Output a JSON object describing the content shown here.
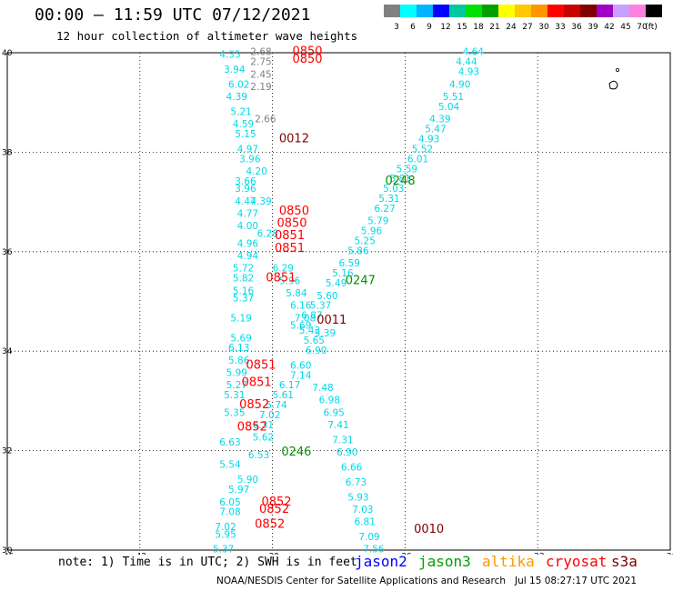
{
  "header": {
    "title": "00:00 — 11:59 UTC 07/12/2021",
    "subtitle": "12 hour collection of altimeter wave heights"
  },
  "colorbar": {
    "colors": [
      "#808080",
      "#00ffff",
      "#00b4ff",
      "#0000ff",
      "#00c8a0",
      "#00e000",
      "#00a000",
      "#ffff00",
      "#ffc800",
      "#ff9600",
      "#ff0000",
      "#c80000",
      "#800000",
      "#a000c8",
      "#c8a0ff",
      "#ff80e0",
      "#000000"
    ],
    "labels": [
      "3",
      "6",
      "9",
      "12",
      "15",
      "18",
      "21",
      "24",
      "27",
      "30",
      "33",
      "36",
      "39",
      "42",
      "45",
      "70",
      "(ft)"
    ]
  },
  "map": {
    "lon_ticks": [
      "-45",
      "-42",
      "-39",
      "-36",
      "-33",
      "-30"
    ],
    "lat_ticks": [
      "40",
      "38",
      "36",
      "34",
      "32",
      "30"
    ]
  },
  "chart_data": {
    "type": "scatter",
    "xlim": [
      -45,
      -30
    ],
    "ylim": [
      30,
      40
    ],
    "grid": true,
    "swh_labels": [
      {
        "lon": -40.2,
        "lat": 39.9,
        "v": "4.35",
        "c": "cyan"
      },
      {
        "lon": -40.1,
        "lat": 39.6,
        "v": "3.94",
        "c": "cyan"
      },
      {
        "lon": -40.0,
        "lat": 39.3,
        "v": "6.02",
        "c": "cyan"
      },
      {
        "lon": -40.05,
        "lat": 39.05,
        "v": "4.39",
        "c": "cyan"
      },
      {
        "lon": -39.95,
        "lat": 38.75,
        "v": "5.21",
        "c": "cyan"
      },
      {
        "lon": -39.9,
        "lat": 38.5,
        "v": "4.59",
        "c": "cyan"
      },
      {
        "lon": -39.85,
        "lat": 38.3,
        "v": "5.15",
        "c": "cyan"
      },
      {
        "lon": -39.8,
        "lat": 38.0,
        "v": "4.97",
        "c": "cyan"
      },
      {
        "lon": -39.75,
        "lat": 37.8,
        "v": "3.96",
        "c": "cyan"
      },
      {
        "lon": -39.6,
        "lat": 37.55,
        "v": "4.20",
        "c": "cyan"
      },
      {
        "lon": -39.85,
        "lat": 37.35,
        "v": "3.66",
        "c": "cyan"
      },
      {
        "lon": -39.85,
        "lat": 37.2,
        "v": "3.96",
        "c": "cyan"
      },
      {
        "lon": -39.85,
        "lat": 36.95,
        "v": "4.47",
        "c": "cyan"
      },
      {
        "lon": -39.5,
        "lat": 36.95,
        "v": "4.39",
        "c": "cyan"
      },
      {
        "lon": -39.8,
        "lat": 36.7,
        "v": "4.77",
        "c": "cyan"
      },
      {
        "lon": -39.8,
        "lat": 36.45,
        "v": "4.00",
        "c": "cyan"
      },
      {
        "lon": -39.8,
        "lat": 36.1,
        "v": "4.96",
        "c": "cyan"
      },
      {
        "lon": -39.8,
        "lat": 35.85,
        "v": "4.94",
        "c": "cyan"
      },
      {
        "lon": -39.9,
        "lat": 35.6,
        "v": "5.72",
        "c": "cyan"
      },
      {
        "lon": -39.9,
        "lat": 35.4,
        "v": "5.82",
        "c": "cyan"
      },
      {
        "lon": -39.9,
        "lat": 35.15,
        "v": "5.16",
        "c": "cyan"
      },
      {
        "lon": -39.9,
        "lat": 35.0,
        "v": "5.37",
        "c": "cyan"
      },
      {
        "lon": -39.95,
        "lat": 34.6,
        "v": "5.19",
        "c": "cyan"
      },
      {
        "lon": -39.95,
        "lat": 34.2,
        "v": "5.69",
        "c": "cyan"
      },
      {
        "lon": -40.0,
        "lat": 34.0,
        "v": "6.13",
        "c": "cyan"
      },
      {
        "lon": -40.0,
        "lat": 33.75,
        "v": "5.86",
        "c": "cyan"
      },
      {
        "lon": -40.05,
        "lat": 33.5,
        "v": "5.99",
        "c": "cyan"
      },
      {
        "lon": -40.05,
        "lat": 33.25,
        "v": "5.27",
        "c": "cyan"
      },
      {
        "lon": -40.1,
        "lat": 33.05,
        "v": "5.31",
        "c": "cyan"
      },
      {
        "lon": -40.1,
        "lat": 32.7,
        "v": "5.35",
        "c": "cyan"
      },
      {
        "lon": -40.2,
        "lat": 32.1,
        "v": "6.63",
        "c": "cyan"
      },
      {
        "lon": -40.2,
        "lat": 31.65,
        "v": "5.54",
        "c": "cyan"
      },
      {
        "lon": -39.8,
        "lat": 31.35,
        "v": "5.90",
        "c": "cyan"
      },
      {
        "lon": -40.0,
        "lat": 31.15,
        "v": "5.97",
        "c": "cyan"
      },
      {
        "lon": -40.2,
        "lat": 30.9,
        "v": "6.05",
        "c": "cyan"
      },
      {
        "lon": -40.2,
        "lat": 30.7,
        "v": "7.08",
        "c": "cyan"
      },
      {
        "lon": -40.3,
        "lat": 30.4,
        "v": "7.02",
        "c": "cyan"
      },
      {
        "lon": -40.3,
        "lat": 30.25,
        "v": "5.95",
        "c": "cyan"
      },
      {
        "lon": -40.35,
        "lat": 29.95,
        "v": "5.37",
        "c": "cyan"
      },
      {
        "lon": -40.4,
        "lat": 29.75,
        "v": "6.50",
        "c": "cyan"
      },
      {
        "lon": -40.45,
        "lat": 29.5,
        "v": "5.07",
        "c": "cyan"
      },
      {
        "lon": -40.6,
        "lat": 29.3,
        "v": "6.14",
        "c": "cyan"
      },
      {
        "lon": -41.0,
        "lat": 29.1,
        "v": "5.73",
        "c": "cyan"
      },
      {
        "lon": -39.4,
        "lat": 38.6,
        "v": "2.66",
        "c": "gray"
      },
      {
        "lon": -39.5,
        "lat": 39.95,
        "v": "2.68",
        "c": "gray"
      },
      {
        "lon": -39.5,
        "lat": 39.75,
        "v": "2.75",
        "c": "gray"
      },
      {
        "lon": -39.5,
        "lat": 39.5,
        "v": "2.45",
        "c": "gray"
      },
      {
        "lon": -39.5,
        "lat": 39.25,
        "v": "2.19",
        "c": "gray"
      },
      {
        "lon": -39.35,
        "lat": 36.3,
        "v": "6.28",
        "c": "cyan"
      },
      {
        "lon": -39.0,
        "lat": 35.6,
        "v": "6.29",
        "c": "cyan"
      },
      {
        "lon": -38.85,
        "lat": 35.35,
        "v": "5.96",
        "c": "cyan"
      },
      {
        "lon": -38.7,
        "lat": 35.1,
        "v": "5.84",
        "c": "cyan"
      },
      {
        "lon": -38.6,
        "lat": 34.85,
        "v": "6.16",
        "c": "cyan"
      },
      {
        "lon": -38.5,
        "lat": 34.6,
        "v": "7.08",
        "c": "cyan"
      },
      {
        "lon": -38.4,
        "lat": 34.35,
        "v": "5.43",
        "c": "cyan"
      },
      {
        "lon": -38.3,
        "lat": 34.15,
        "v": "5.65",
        "c": "cyan"
      },
      {
        "lon": -38.25,
        "lat": 33.95,
        "v": "6.90",
        "c": "cyan"
      },
      {
        "lon": -38.6,
        "lat": 33.65,
        "v": "6.60",
        "c": "cyan"
      },
      {
        "lon": -38.6,
        "lat": 33.45,
        "v": "7.14",
        "c": "cyan"
      },
      {
        "lon": -38.85,
        "lat": 33.25,
        "v": "6.17",
        "c": "cyan"
      },
      {
        "lon": -39.0,
        "lat": 33.05,
        "v": "5.61",
        "c": "cyan"
      },
      {
        "lon": -39.15,
        "lat": 32.85,
        "v": "5.74",
        "c": "cyan"
      },
      {
        "lon": -39.3,
        "lat": 32.65,
        "v": "7.02",
        "c": "cyan"
      },
      {
        "lon": -39.45,
        "lat": 32.45,
        "v": "6.31",
        "c": "cyan"
      },
      {
        "lon": -39.45,
        "lat": 32.2,
        "v": "5.62",
        "c": "cyan"
      },
      {
        "lon": -39.55,
        "lat": 31.85,
        "v": "6.53",
        "c": "cyan"
      },
      {
        "lon": -38.1,
        "lat": 33.2,
        "v": "7.48",
        "c": "cyan"
      },
      {
        "lon": -37.95,
        "lat": 32.95,
        "v": "6.98",
        "c": "cyan"
      },
      {
        "lon": -37.85,
        "lat": 32.7,
        "v": "6.95",
        "c": "cyan"
      },
      {
        "lon": -37.75,
        "lat": 32.45,
        "v": "7.41",
        "c": "cyan"
      },
      {
        "lon": -37.65,
        "lat": 32.15,
        "v": "7.31",
        "c": "cyan"
      },
      {
        "lon": -37.55,
        "lat": 31.9,
        "v": "6.90",
        "c": "cyan"
      },
      {
        "lon": -37.45,
        "lat": 31.6,
        "v": "6.66",
        "c": "cyan"
      },
      {
        "lon": -37.35,
        "lat": 31.3,
        "v": "6.73",
        "c": "cyan"
      },
      {
        "lon": -37.3,
        "lat": 31.0,
        "v": "5.93",
        "c": "cyan"
      },
      {
        "lon": -37.2,
        "lat": 30.75,
        "v": "7.03",
        "c": "cyan"
      },
      {
        "lon": -37.15,
        "lat": 30.5,
        "v": "6.81",
        "c": "cyan"
      },
      {
        "lon": -37.05,
        "lat": 30.2,
        "v": "7.09",
        "c": "cyan"
      },
      {
        "lon": -36.95,
        "lat": 29.95,
        "v": "7.56",
        "c": "cyan"
      },
      {
        "lon": -36.85,
        "lat": 29.7,
        "v": "6.88",
        "c": "cyan"
      },
      {
        "lon": -36.75,
        "lat": 29.4,
        "v": "6.76",
        "c": "cyan"
      },
      {
        "lon": -36.7,
        "lat": 29.15,
        "v": "5.11",
        "c": "cyan"
      },
      {
        "lon": -36.85,
        "lat": 28.9,
        "v": "5.97",
        "c": "cyan"
      },
      {
        "lon": -34.7,
        "lat": 39.95,
        "v": "4.64",
        "c": "cyan"
      },
      {
        "lon": -34.85,
        "lat": 39.75,
        "v": "4.44",
        "c": "cyan"
      },
      {
        "lon": -34.8,
        "lat": 39.55,
        "v": "4.93",
        "c": "cyan"
      },
      {
        "lon": -35.0,
        "lat": 39.3,
        "v": "4.90",
        "c": "cyan"
      },
      {
        "lon": -35.15,
        "lat": 39.05,
        "v": "5.51",
        "c": "cyan"
      },
      {
        "lon": -35.25,
        "lat": 38.85,
        "v": "5.04",
        "c": "cyan"
      },
      {
        "lon": -35.45,
        "lat": 38.6,
        "v": "4.39",
        "c": "cyan"
      },
      {
        "lon": -35.55,
        "lat": 38.4,
        "v": "5.47",
        "c": "cyan"
      },
      {
        "lon": -35.7,
        "lat": 38.2,
        "v": "4.93",
        "c": "cyan"
      },
      {
        "lon": -35.85,
        "lat": 38.0,
        "v": "5.52",
        "c": "cyan"
      },
      {
        "lon": -35.95,
        "lat": 37.8,
        "v": "6.01",
        "c": "cyan"
      },
      {
        "lon": -36.2,
        "lat": 37.6,
        "v": "5.59",
        "c": "cyan"
      },
      {
        "lon": -36.35,
        "lat": 37.4,
        "v": "5.81",
        "c": "cyan"
      },
      {
        "lon": -36.5,
        "lat": 37.2,
        "v": "5.03",
        "c": "cyan"
      },
      {
        "lon": -36.6,
        "lat": 37.0,
        "v": "5.31",
        "c": "cyan"
      },
      {
        "lon": -36.7,
        "lat": 36.8,
        "v": "6.27",
        "c": "cyan"
      },
      {
        "lon": -36.85,
        "lat": 36.55,
        "v": "5.79",
        "c": "cyan"
      },
      {
        "lon": -37.0,
        "lat": 36.35,
        "v": "5.96",
        "c": "cyan"
      },
      {
        "lon": -37.15,
        "lat": 36.15,
        "v": "5.25",
        "c": "cyan"
      },
      {
        "lon": -37.3,
        "lat": 35.95,
        "v": "5.86",
        "c": "cyan"
      },
      {
        "lon": -37.5,
        "lat": 35.7,
        "v": "6.59",
        "c": "cyan"
      },
      {
        "lon": -37.65,
        "lat": 35.5,
        "v": "5.16",
        "c": "cyan"
      },
      {
        "lon": -37.8,
        "lat": 35.3,
        "v": "5.49",
        "c": "cyan"
      },
      {
        "lon": -38.0,
        "lat": 35.05,
        "v": "5.60",
        "c": "cyan"
      },
      {
        "lon": -38.15,
        "lat": 34.85,
        "v": "5.37",
        "c": "cyan"
      },
      {
        "lon": -38.35,
        "lat": 34.65,
        "v": "6.87",
        "c": "cyan"
      },
      {
        "lon": -38.6,
        "lat": 34.45,
        "v": "5.69",
        "c": "cyan"
      },
      {
        "lon": -38.05,
        "lat": 34.3,
        "v": "5.39",
        "c": "cyan"
      }
    ],
    "time_labels": [
      {
        "lon": -38.55,
        "lat": 39.95,
        "v": "0850",
        "c": "red"
      },
      {
        "lon": -38.55,
        "lat": 39.8,
        "v": "0850",
        "c": "red"
      },
      {
        "lon": -38.85,
        "lat": 38.2,
        "v": "0012",
        "c": "maroon"
      },
      {
        "lon": -38.85,
        "lat": 36.75,
        "v": "0850",
        "c": "red"
      },
      {
        "lon": -38.9,
        "lat": 36.5,
        "v": "0850",
        "c": "red"
      },
      {
        "lon": -38.95,
        "lat": 36.25,
        "v": "0851",
        "c": "red"
      },
      {
        "lon": -38.95,
        "lat": 36.0,
        "v": "0851",
        "c": "red"
      },
      {
        "lon": -39.15,
        "lat": 35.4,
        "v": "0851",
        "c": "red"
      },
      {
        "lon": -39.6,
        "lat": 33.65,
        "v": "0851",
        "c": "red"
      },
      {
        "lon": -39.7,
        "lat": 33.3,
        "v": "0851",
        "c": "red"
      },
      {
        "lon": -39.75,
        "lat": 32.85,
        "v": "0852",
        "c": "red"
      },
      {
        "lon": -39.8,
        "lat": 32.4,
        "v": "0852",
        "c": "red"
      },
      {
        "lon": -39.25,
        "lat": 30.9,
        "v": "0852",
        "c": "red"
      },
      {
        "lon": -39.3,
        "lat": 30.75,
        "v": "0852",
        "c": "red"
      },
      {
        "lon": -39.4,
        "lat": 30.45,
        "v": "0852",
        "c": "red"
      },
      {
        "lon": -40.05,
        "lat": 29.35,
        "v": "0852",
        "c": "red"
      },
      {
        "lon": -36.45,
        "lat": 37.35,
        "v": "0248",
        "c": "green"
      },
      {
        "lon": -37.35,
        "lat": 35.35,
        "v": "0247",
        "c": "green"
      },
      {
        "lon": -38.8,
        "lat": 31.9,
        "v": "0246",
        "c": "green"
      },
      {
        "lon": -40.6,
        "lat": 29.15,
        "v": "0245",
        "c": "green"
      },
      {
        "lon": -38.0,
        "lat": 34.55,
        "v": "0011",
        "c": "maroon"
      },
      {
        "lon": -35.8,
        "lat": 30.35,
        "v": "0010",
        "c": "maroon"
      },
      {
        "lon": -36.05,
        "lat": 29.1,
        "v": "0009",
        "c": "maroon"
      }
    ]
  },
  "footer": {
    "note": "note: 1) Time is in UTC; 2) SWH is in feet",
    "legend": [
      {
        "name": "jason2",
        "color": "#0000ff"
      },
      {
        "name": "jason3",
        "color": "#00a000"
      },
      {
        "name": "altika",
        "color": "#ff9600"
      },
      {
        "name": "cryosat",
        "color": "#ff0000"
      },
      {
        "name": "s3a",
        "color": "#800000"
      }
    ],
    "credit": "NOAA/NESDIS Center for Satellite Applications and Research   Jul 15 08:27:17 UTC 2021"
  }
}
